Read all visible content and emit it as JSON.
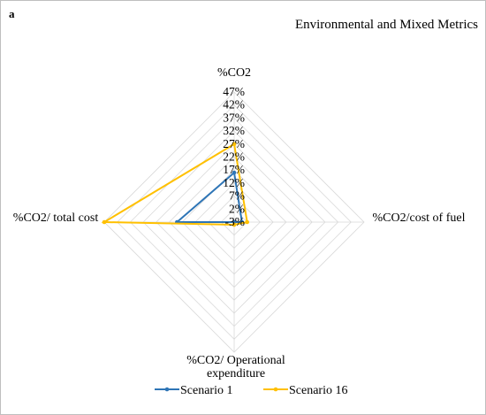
{
  "panel_label": "a",
  "chart_data": {
    "type": "radar",
    "title": "Environmental and Mixed Metrics",
    "axes": [
      "%CO2",
      "%CO2/cost of fuel",
      "%CO2/ Operational expenditure",
      "%CO2/ total cost"
    ],
    "axis_label_lines": [
      [
        "%CO2"
      ],
      [
        "%CO2/cost of fuel"
      ],
      [
        "%CO2/ Operational",
        "expenditure"
      ],
      [
        "%CO2/ total cost"
      ]
    ],
    "ticks": [
      "-3%",
      "2%",
      "7%",
      "12%",
      "17%",
      "22%",
      "27%",
      "32%",
      "37%",
      "42%",
      "47%"
    ],
    "rmin": -3,
    "rmax": 47,
    "grid": true,
    "legend_position": "bottom",
    "series": [
      {
        "name": "Scenario 1",
        "color": "#2e75b6",
        "values": [
          16,
          0,
          -3,
          19
        ]
      },
      {
        "name": "Scenario 16",
        "color": "#ffc000",
        "values": [
          27,
          2,
          -2,
          47
        ]
      }
    ]
  }
}
